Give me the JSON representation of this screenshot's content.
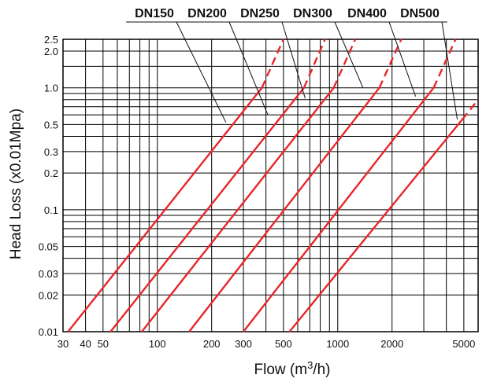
{
  "chart_data": {
    "type": "line",
    "title": "",
    "xlabel": "Flow (m3/h)",
    "xlabel_parts": {
      "main": "Flow (m",
      "sup": "3",
      "end": "/h)"
    },
    "ylabel": "Head Loss (x0.01Mpa)",
    "x_scale": "log",
    "y_scale": "log",
    "xlim": [
      30,
      6000
    ],
    "ylim": [
      0.01,
      2.5
    ],
    "grid": true,
    "legend": "top, with leader lines",
    "x_ticks": [
      {
        "value": 30,
        "label": "30"
      },
      {
        "value": 40,
        "label": "40"
      },
      {
        "value": 50,
        "label": "50"
      },
      {
        "value": 100,
        "label": "100"
      },
      {
        "value": 200,
        "label": "200"
      },
      {
        "value": 300,
        "label": "300"
      },
      {
        "value": 500,
        "label": "500"
      },
      {
        "value": 1000,
        "label": "1000"
      },
      {
        "value": 2000,
        "label": "2000"
      },
      {
        "value": 5000,
        "label": "5000"
      }
    ],
    "y_ticks": [
      {
        "value": 0.01,
        "label": "0.01"
      },
      {
        "value": 0.02,
        "label": "0.02"
      },
      {
        "value": 0.03,
        "label": "0.03"
      },
      {
        "value": 0.05,
        "label": "0.05"
      },
      {
        "value": 0.1,
        "label": "0.1"
      },
      {
        "value": 0.2,
        "label": "0.2"
      },
      {
        "value": 0.3,
        "label": "0.3"
      },
      {
        "value": 0.5,
        "label": "0.5"
      },
      {
        "value": 1.0,
        "label": "1.0"
      },
      {
        "value": 2.0,
        "label": "2.0"
      },
      {
        "value": 2.5,
        "label": "2.5"
      }
    ],
    "series": [
      {
        "name": "DN150",
        "solid": [
          [
            32,
            0.01
          ],
          [
            380,
            1.0
          ]
        ],
        "dashed": [
          [
            380,
            1.0
          ],
          [
            500,
            2.5
          ]
        ]
      },
      {
        "name": "DN200",
        "solid": [
          [
            55,
            0.01
          ],
          [
            650,
            1.0
          ]
        ],
        "dashed": [
          [
            650,
            1.0
          ],
          [
            850,
            2.5
          ]
        ]
      },
      {
        "name": "DN250",
        "solid": [
          [
            82,
            0.01
          ],
          [
            950,
            1.0
          ]
        ],
        "dashed": [
          [
            950,
            1.0
          ],
          [
            1250,
            2.5
          ]
        ]
      },
      {
        "name": "DN300",
        "solid": [
          [
            150,
            0.01
          ],
          [
            1700,
            1.0
          ]
        ],
        "dashed": [
          [
            1700,
            1.0
          ],
          [
            2250,
            2.5
          ]
        ]
      },
      {
        "name": "DN400",
        "solid": [
          [
            300,
            0.01
          ],
          [
            3400,
            1.0
          ]
        ],
        "dashed": [
          [
            3400,
            1.0
          ],
          [
            4500,
            2.5
          ]
        ]
      },
      {
        "name": "DN500",
        "solid": [
          [
            540,
            0.01
          ],
          [
            4900,
            0.55
          ]
        ],
        "dashed": [
          [
            4900,
            0.55
          ],
          [
            6000,
            0.8
          ]
        ]
      }
    ],
    "pointers": [
      {
        "name": "DN150",
        "target": [
          240,
          0.52
        ]
      },
      {
        "name": "DN200",
        "target": [
          410,
          0.6
        ]
      },
      {
        "name": "DN250",
        "target": [
          660,
          0.82
        ]
      },
      {
        "name": "DN300",
        "target": [
          1380,
          1.0
        ]
      },
      {
        "name": "DN400",
        "target": [
          2700,
          0.85
        ]
      },
      {
        "name": "DN500",
        "target": [
          4600,
          0.55
        ]
      }
    ],
    "colors": {
      "series": "#e8262b",
      "grid": "#000000",
      "text": "#111111"
    }
  }
}
